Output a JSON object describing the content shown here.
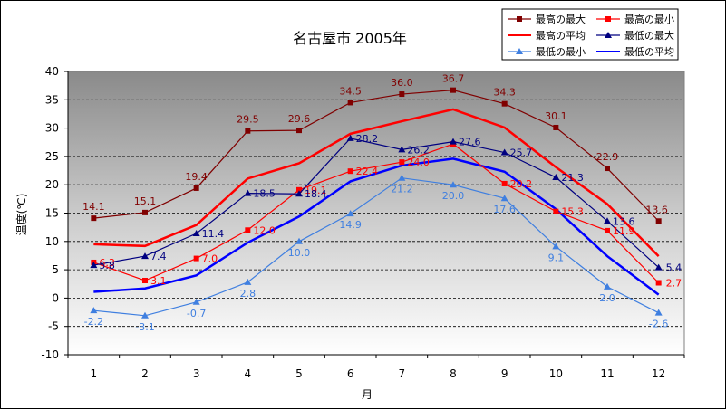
{
  "chart_data": {
    "type": "line",
    "title": "名古屋市 2005年",
    "xlabel": "月",
    "ylabel": "温度(℃)",
    "ylim": [
      -10,
      40
    ],
    "yticks": [
      40,
      35,
      30,
      25,
      20,
      15,
      10,
      5,
      0,
      -5,
      -10
    ],
    "categories": [
      "1",
      "2",
      "3",
      "4",
      "5",
      "6",
      "7",
      "8",
      "9",
      "10",
      "11",
      "12"
    ],
    "grid": "dashed horizontal",
    "legend": "top-right",
    "series": [
      {
        "name": "最高の最大",
        "color": "#800000",
        "marker": "square",
        "values": [
          14.1,
          15.1,
          19.4,
          29.5,
          29.6,
          34.5,
          36.0,
          36.7,
          34.3,
          30.1,
          22.9,
          13.6
        ],
        "labels": [
          "14.1",
          "15.1",
          "19.4",
          "29.5",
          "29.6",
          "34.5",
          "36.0",
          "36.7",
          "34.3",
          "30.1",
          "22.9",
          "13.6"
        ]
      },
      {
        "name": "最高の最小",
        "color": "#ff0000",
        "marker": "square",
        "values": [
          6.3,
          3.1,
          7.0,
          12.0,
          19.1,
          22.4,
          24.0,
          27.2,
          20.2,
          15.3,
          11.9,
          2.7
        ],
        "labels": [
          "6.3",
          "3.1",
          "7.0",
          "12.0",
          "19.1",
          "22.4",
          "24.0",
          "",
          "20.2",
          "15.3",
          "11.9",
          "2.7"
        ]
      },
      {
        "name": "最高の平均",
        "color": "#ff0000",
        "marker": "none",
        "values": [
          9.5,
          9.2,
          12.9,
          21.1,
          23.8,
          29.0,
          31.2,
          33.3,
          30.1,
          23.1,
          16.6,
          7.4
        ],
        "labels": []
      },
      {
        "name": "最低の最大",
        "color": "#000080",
        "marker": "triangle",
        "values": [
          5.8,
          7.4,
          11.4,
          18.5,
          18.4,
          28.2,
          26.2,
          27.6,
          25.7,
          21.3,
          13.6,
          5.4
        ],
        "labels": [
          "5.8",
          "7.4",
          "11.4",
          "18.5",
          "18.4",
          "28.2",
          "26.2",
          "27.6",
          "25.7",
          "21.3",
          "13.6",
          "5.4"
        ]
      },
      {
        "name": "最低の最小",
        "color": "#3f7fe0",
        "marker": "triangle",
        "values": [
          -2.2,
          -3.1,
          -0.7,
          2.8,
          10.0,
          14.9,
          21.2,
          20.0,
          17.6,
          9.1,
          2.0,
          -2.6
        ],
        "labels": [
          "-2.2",
          "-3.1",
          "-0.7",
          "2.8",
          "10.0",
          "14.9",
          "21.2",
          "20.0",
          "17.6",
          "9.1",
          "2.0",
          "-2.6"
        ]
      },
      {
        "name": "最低の平均",
        "color": "#0000ff",
        "marker": "none",
        "values": [
          1.1,
          1.7,
          4.0,
          9.8,
          14.4,
          20.6,
          23.4,
          24.6,
          22.3,
          15.7,
          7.4,
          0.6
        ],
        "labels": []
      }
    ]
  }
}
